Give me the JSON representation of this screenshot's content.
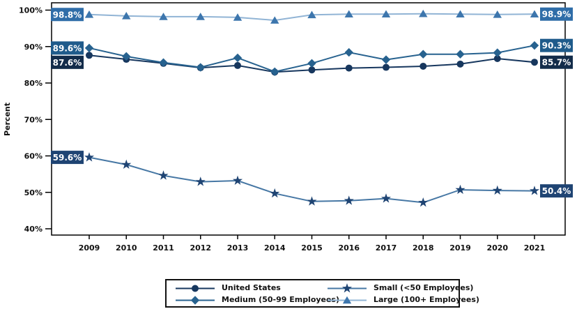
{
  "chart_data": {
    "type": "line",
    "title": "",
    "ylabel": "Percent",
    "xlabel": "",
    "ylim": [
      40,
      100
    ],
    "yticks": [
      "40%",
      "50%",
      "60%",
      "70%",
      "80%",
      "90%",
      "100%"
    ],
    "x": [
      2009,
      2010,
      2011,
      2012,
      2013,
      2014,
      2015,
      2016,
      2017,
      2018,
      2019,
      2020,
      2021
    ],
    "grid": false,
    "legend_position": "bottom",
    "draw_order": [
      3,
      0,
      1,
      2
    ],
    "series": [
      {
        "name": "United States",
        "marker": "circle",
        "line_color": "#17375E",
        "marker_color": "#17375E",
        "label_bg": "#132C4A",
        "start_label": "87.6%",
        "end_label": "85.7%",
        "values": [
          87.6,
          86.5,
          85.4,
          84.2,
          84.8,
          83.0,
          83.6,
          84.1,
          84.3,
          84.6,
          85.2,
          86.7,
          85.7
        ]
      },
      {
        "name": "Medium (50-99 Employees)",
        "marker": "diamond",
        "line_color": "#27628F",
        "marker_color": "#27628F",
        "label_bg": "#1F5B8B",
        "start_label": "89.6%",
        "end_label": "90.3%",
        "values": [
          89.6,
          87.3,
          85.6,
          84.3,
          86.9,
          83.1,
          85.4,
          88.4,
          86.4,
          87.9,
          87.9,
          88.3,
          90.3
        ]
      },
      {
        "name": "Small (<50 Employees)",
        "marker": "star",
        "line_color": "#4677A4",
        "marker_color": "#1F4473",
        "label_bg": "#1F4473",
        "start_label": "59.6%",
        "end_label": "50.4%",
        "values": [
          59.6,
          57.6,
          54.6,
          52.9,
          53.2,
          49.7,
          47.5,
          47.7,
          48.3,
          47.2,
          50.7,
          50.5,
          50.4
        ]
      },
      {
        "name": "Large (100+ Employees)",
        "marker": "triangle",
        "line_color": "#91B4D5",
        "marker_color": "#3D76AD",
        "label_bg": "#2F6DA8",
        "start_label": "98.8%",
        "end_label": "98.9%",
        "values": [
          98.8,
          98.4,
          98.2,
          98.2,
          98.0,
          97.2,
          98.7,
          98.9,
          98.9,
          99.0,
          98.9,
          98.8,
          98.9
        ]
      }
    ]
  }
}
